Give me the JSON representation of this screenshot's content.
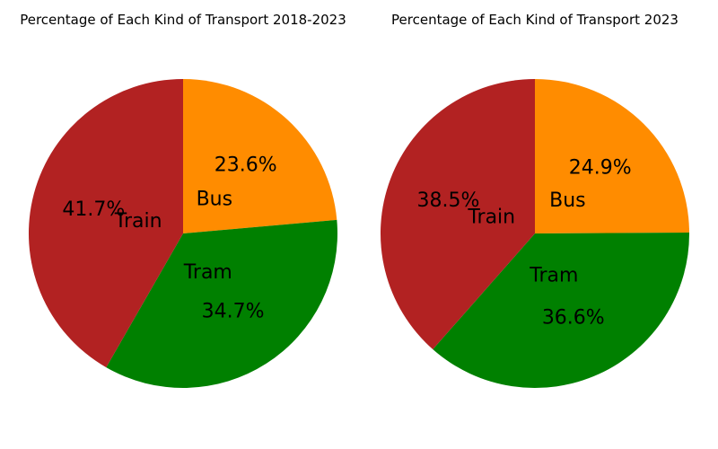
{
  "chart_data": [
    {
      "type": "pie",
      "title": "Percentage of Each Kind of Transport 2018-2023",
      "start_angle_deg": 90,
      "direction": "clockwise",
      "slices": [
        {
          "label": "Bus",
          "value": 23.6,
          "pct_label": "23.6%",
          "color": "#ff8c00"
        },
        {
          "label": "Tram",
          "value": 34.7,
          "pct_label": "34.7%",
          "color": "#008000"
        },
        {
          "label": "Train",
          "value": 41.7,
          "pct_label": "41.7%",
          "color": "#b22222"
        }
      ]
    },
    {
      "type": "pie",
      "title": "Percentage of Each Kind of Transport 2023",
      "start_angle_deg": 90,
      "direction": "clockwise",
      "slices": [
        {
          "label": "Bus",
          "value": 24.9,
          "pct_label": "24.9%",
          "color": "#ff8c00"
        },
        {
          "label": "Tram",
          "value": 36.6,
          "pct_label": "36.6%",
          "color": "#008000"
        },
        {
          "label": "Train",
          "value": 38.5,
          "pct_label": "38.5%",
          "color": "#b22222"
        }
      ]
    }
  ]
}
